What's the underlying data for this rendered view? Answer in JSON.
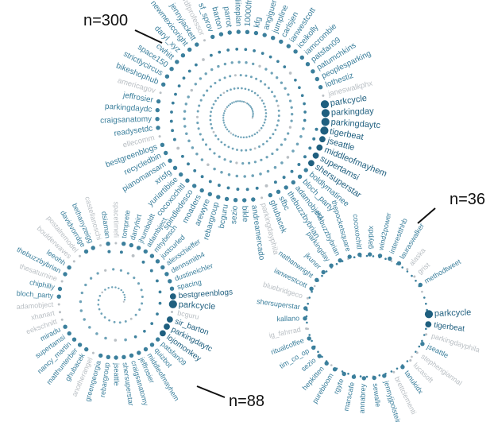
{
  "colors": {
    "strong": "#1f5f7f",
    "mid": "#3b7f9c",
    "light": "#6fa3b8",
    "gray": "#b9bfc4",
    "annotation": "#111111"
  },
  "annotations": [
    {
      "id": "n300",
      "text": "n=300"
    },
    {
      "id": "n36",
      "text": "n=36"
    },
    {
      "id": "n88",
      "text": "n=88"
    }
  ],
  "spirals": [
    {
      "id": "spiral-300",
      "n": 300,
      "labels": [
        {
          "text": "parkcycle",
          "w": 3
        },
        {
          "text": "parkingday",
          "w": 3
        },
        {
          "text": "parkingdaytc",
          "w": 3
        },
        {
          "text": "tigerbeat",
          "w": 3
        },
        {
          "text": "jseattle",
          "w": 2
        },
        {
          "text": "middleofmayhem",
          "w": 2
        },
        {
          "text": "supertamsi",
          "w": 2
        },
        {
          "text": "shersuperstar",
          "w": 2
        },
        {
          "text": "boldlymatinee",
          "w": 1
        },
        {
          "text": "bloch_party",
          "w": 1
        },
        {
          "text": "adamobject",
          "w": 1
        },
        {
          "text": "thebuzzbybrian",
          "w": 1
        },
        {
          "text": "sfbc",
          "w": 1
        },
        {
          "text": "ghubacek",
          "w": 1
        },
        {
          "text": "parkingdayphila",
          "w": 0
        },
        {
          "text": "andreamercado",
          "w": 1
        },
        {
          "text": "bikle",
          "w": 1
        },
        {
          "text": "sezio",
          "w": 1
        },
        {
          "text": "bcguru",
          "w": 1
        },
        {
          "text": "rebargroup",
          "w": 1
        },
        {
          "text": "arewyre",
          "w": 1
        },
        {
          "text": "moaders",
          "w": 1
        },
        {
          "text": "spindledesco",
          "w": 1
        },
        {
          "text": "cocoxochitl",
          "w": 1
        },
        {
          "text": "yuriartibise",
          "w": 1
        },
        {
          "text": "xrisfg",
          "w": 1
        },
        {
          "text": "pianomansam",
          "w": 1
        },
        {
          "text": "recycledbin",
          "w": 1
        },
        {
          "text": "bestgreenblogs",
          "w": 1
        },
        {
          "text": "ellecomm",
          "w": 0
        },
        {
          "text": "readysetdc",
          "w": 1
        },
        {
          "text": "craigsanatomy",
          "w": 1
        },
        {
          "text": "parkingdaydc",
          "w": 1
        },
        {
          "text": "jeffrosier",
          "w": 1
        },
        {
          "text": "americagov",
          "w": 0
        },
        {
          "text": "bikeshophub",
          "w": 1
        },
        {
          "text": "strictlycircus",
          "w": 1
        },
        {
          "text": "space150",
          "w": 1
        },
        {
          "text": "cwhitt",
          "w": 1
        },
        {
          "text": "daryl_xyz",
          "w": 1
        },
        {
          "text": "newmexicoright",
          "w": 1
        },
        {
          "text": "jennyjackett",
          "w": 1
        },
        {
          "text": "rdfprofessor",
          "w": 0
        },
        {
          "text": "sf_sprov",
          "w": 1
        },
        {
          "text": "barton",
          "w": 1
        },
        {
          "text": "parrot",
          "w": 1
        },
        {
          "text": "liiteplan",
          "w": 1
        },
        {
          "text": "10000friends",
          "w": 1
        },
        {
          "text": "kfg",
          "w": 1
        },
        {
          "text": "angiguero",
          "w": 1
        },
        {
          "text": "jumpline",
          "w": 1
        },
        {
          "text": "carlsjen",
          "w": 1
        },
        {
          "text": "ianwestcott",
          "w": 1
        },
        {
          "text": "iceikolly",
          "w": 1
        },
        {
          "text": "iamcrombie",
          "w": 1
        },
        {
          "text": "patsfan09",
          "w": 1
        },
        {
          "text": "patumchkins",
          "w": 1
        },
        {
          "text": "peoplesparking",
          "w": 1
        },
        {
          "text": "lothestiz",
          "w": 1
        },
        {
          "text": "janeswalkphx",
          "w": 0
        }
      ]
    },
    {
      "id": "spiral-88",
      "n": 88,
      "labels": [
        {
          "text": "bestgreenblogs",
          "w": 2
        },
        {
          "text": "parkcycle",
          "w": 3
        },
        {
          "text": "bcguru",
          "w": 0
        },
        {
          "text": "sir_barton",
          "w": 2
        },
        {
          "text": "parkingdaytc",
          "w": 2
        },
        {
          "text": "lojomonkey",
          "w": 2
        },
        {
          "text": "patsfan09",
          "w": 1
        },
        {
          "text": "quizbot",
          "w": 1
        },
        {
          "text": "middleofmayhem",
          "w": 1
        },
        {
          "text": "jeffrosier",
          "w": 1
        },
        {
          "text": "craigsanatomy",
          "w": 1
        },
        {
          "text": "shersuperstar",
          "w": 1
        },
        {
          "text": "jseattle",
          "w": 1
        },
        {
          "text": "rebargroup",
          "w": 1
        },
        {
          "text": "greengeorgia",
          "w": 1
        },
        {
          "text": "anotherangel",
          "w": 0
        },
        {
          "text": "ghubacek",
          "w": 1
        },
        {
          "text": "matthunterber",
          "w": 1
        },
        {
          "text": "nancy_martin",
          "w": 1
        },
        {
          "text": "supertamsi",
          "w": 1
        },
        {
          "text": "miradu",
          "w": 1
        },
        {
          "text": "eekschnitt",
          "w": 0
        },
        {
          "text": "xhanart",
          "w": 0
        },
        {
          "text": "adamobject",
          "w": 0
        },
        {
          "text": "bloch_party",
          "w": 1
        },
        {
          "text": "chiphilly",
          "w": 1
        },
        {
          "text": "thesaturnine",
          "w": 0
        },
        {
          "text": "thebuzzbybrian",
          "w": 1
        },
        {
          "text": "leeohh",
          "w": 1
        },
        {
          "text": "boulderwaves",
          "w": 0
        },
        {
          "text": "postalremodel",
          "w": 0
        },
        {
          "text": "davidvorrdge",
          "w": 1
        },
        {
          "text": "bethanyzeigg",
          "w": 1
        },
        {
          "text": "castellanoschi",
          "w": 0
        },
        {
          "text": "dsiaman",
          "w": 1
        },
        {
          "text": "spacetimefi",
          "w": 0
        },
        {
          "text": "tomprete",
          "w": 1
        },
        {
          "text": "darryhirt",
          "w": 1
        },
        {
          "text": "jhumboldt",
          "w": 1
        },
        {
          "text": "adambject",
          "w": 1
        },
        {
          "text": "mhybesch",
          "w": 1
        },
        {
          "text": "justcurled",
          "w": 1
        },
        {
          "text": "alexschieffer",
          "w": 1
        },
        {
          "text": "dennsmith4",
          "w": 1
        },
        {
          "text": "dustineichler",
          "w": 1
        },
        {
          "text": "spacing",
          "w": 1
        }
      ]
    },
    {
      "id": "spiral-36",
      "n": 36,
      "labels": [
        {
          "text": "parkcycle",
          "w": 3
        },
        {
          "text": "tigerbeat",
          "w": 2
        },
        {
          "text": "parkingdayphila",
          "w": 0
        },
        {
          "text": "jseattle",
          "w": 1
        },
        {
          "text": "stephengiannal",
          "w": 0
        },
        {
          "text": "lucasoft",
          "w": 0
        },
        {
          "text": "tanukidx",
          "w": 1
        },
        {
          "text": "brettclementi",
          "w": 0
        },
        {
          "text": "jennyjjpolstein",
          "w": 1
        },
        {
          "text": "sewalle",
          "w": 1
        },
        {
          "text": "annabrey",
          "w": 1
        },
        {
          "text": "marscafe",
          "w": 1
        },
        {
          "text": "rgyte",
          "w": 1
        },
        {
          "text": "purebloom",
          "w": 1
        },
        {
          "text": "hepkitten",
          "w": 1
        },
        {
          "text": "sezio",
          "w": 1
        },
        {
          "text": "tim_co_op",
          "w": 1
        },
        {
          "text": "ritualcoffee",
          "w": 1
        },
        {
          "text": "ig_fahrrad",
          "w": 0
        },
        {
          "text": "kallano",
          "w": 1
        },
        {
          "text": "shersuperstar",
          "w": 1
        },
        {
          "text": "bluebridgeco",
          "w": 0
        },
        {
          "text": "ianwestcott",
          "w": 1
        },
        {
          "text": "nathanwright",
          "w": 1
        },
        {
          "text": "jkuner",
          "w": 1
        },
        {
          "text": "parkingday",
          "w": 1
        },
        {
          "text": "thebuzzbybrian",
          "w": 1
        },
        {
          "text": "thepocketsquare",
          "w": 1
        },
        {
          "text": "cocoxochitl",
          "w": 1
        },
        {
          "text": "gaypdx",
          "w": 1
        },
        {
          "text": "wind2power",
          "w": 1
        },
        {
          "text": "interestthhb",
          "w": 1
        },
        {
          "text": "lauraswalker",
          "w": 1
        },
        {
          "text": "alaska",
          "w": 0
        },
        {
          "text": "grist",
          "w": 0
        },
        {
          "text": "methodtweet",
          "w": 1
        }
      ]
    }
  ]
}
